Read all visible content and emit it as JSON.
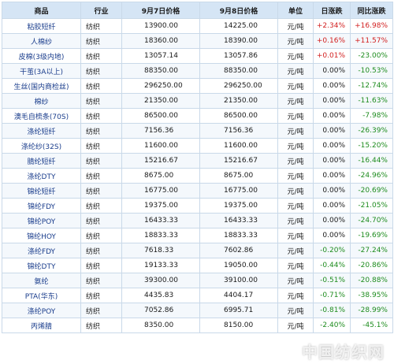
{
  "headers": {
    "name": "商品",
    "industry": "行业",
    "price1": "9月7日价格",
    "price2": "9月8日价格",
    "unit": "单位",
    "day": "日涨跌",
    "yoy": "同比涨跌"
  },
  "rows": [
    {
      "name": "粘胶短纤",
      "industry": "纺织",
      "price1": "13900.00",
      "price2": "14225.00",
      "unit": "元/吨",
      "day": "+2.34%",
      "yoy": "+16.98%",
      "day_dir": "up",
      "yoy_dir": "up"
    },
    {
      "name": "人棉纱",
      "industry": "纺织",
      "price1": "18360.00",
      "price2": "18390.00",
      "unit": "元/吨",
      "day": "+0.16%",
      "yoy": "+11.57%",
      "day_dir": "up",
      "yoy_dir": "up"
    },
    {
      "name": "皮棉(3级内地)",
      "industry": "纺织",
      "price1": "13057.14",
      "price2": "13057.86",
      "unit": "元/吨",
      "day": "+0.01%",
      "yoy": "-23.00%",
      "day_dir": "up",
      "yoy_dir": "down"
    },
    {
      "name": "干茧(3A以上)",
      "industry": "纺织",
      "price1": "88350.00",
      "price2": "88350.00",
      "unit": "元/吨",
      "day": "0.00%",
      "yoy": "-10.53%",
      "day_dir": "flat",
      "yoy_dir": "down"
    },
    {
      "name": "生丝(国内商检丝)",
      "industry": "纺织",
      "price1": "296250.00",
      "price2": "296250.00",
      "unit": "元/吨",
      "day": "0.00%",
      "yoy": "-12.74%",
      "day_dir": "flat",
      "yoy_dir": "down"
    },
    {
      "name": "棉纱",
      "industry": "纺织",
      "price1": "21350.00",
      "price2": "21350.00",
      "unit": "元/吨",
      "day": "0.00%",
      "yoy": "-11.63%",
      "day_dir": "flat",
      "yoy_dir": "down"
    },
    {
      "name": "澳毛自梳条(70S)",
      "industry": "纺织",
      "price1": "86500.00",
      "price2": "86500.00",
      "unit": "元/吨",
      "day": "0.00%",
      "yoy": "-7.98%",
      "day_dir": "flat",
      "yoy_dir": "down"
    },
    {
      "name": "涤纶短纤",
      "industry": "纺织",
      "price1": "7156.36",
      "price2": "7156.36",
      "unit": "元/吨",
      "day": "0.00%",
      "yoy": "-26.39%",
      "day_dir": "flat",
      "yoy_dir": "down"
    },
    {
      "name": "涤纶纱(32S)",
      "industry": "纺织",
      "price1": "11600.00",
      "price2": "11600.00",
      "unit": "元/吨",
      "day": "0.00%",
      "yoy": "-15.20%",
      "day_dir": "flat",
      "yoy_dir": "down"
    },
    {
      "name": "腈纶短纤",
      "industry": "纺织",
      "price1": "15216.67",
      "price2": "15216.67",
      "unit": "元/吨",
      "day": "0.00%",
      "yoy": "-16.44%",
      "day_dir": "flat",
      "yoy_dir": "down"
    },
    {
      "name": "涤纶DTY",
      "industry": "纺织",
      "price1": "8675.00",
      "price2": "8675.00",
      "unit": "元/吨",
      "day": "0.00%",
      "yoy": "-24.96%",
      "day_dir": "flat",
      "yoy_dir": "down"
    },
    {
      "name": "锦纶短纤",
      "industry": "纺织",
      "price1": "16775.00",
      "price2": "16775.00",
      "unit": "元/吨",
      "day": "0.00%",
      "yoy": "-20.69%",
      "day_dir": "flat",
      "yoy_dir": "down"
    },
    {
      "name": "锦纶FDY",
      "industry": "纺织",
      "price1": "19375.00",
      "price2": "19375.00",
      "unit": "元/吨",
      "day": "0.00%",
      "yoy": "-21.05%",
      "day_dir": "flat",
      "yoy_dir": "down"
    },
    {
      "name": "锦纶POY",
      "industry": "纺织",
      "price1": "16433.33",
      "price2": "16433.33",
      "unit": "元/吨",
      "day": "0.00%",
      "yoy": "-24.70%",
      "day_dir": "flat",
      "yoy_dir": "down"
    },
    {
      "name": "锦纶HOY",
      "industry": "纺织",
      "price1": "18833.33",
      "price2": "18833.33",
      "unit": "元/吨",
      "day": "0.00%",
      "yoy": "-19.69%",
      "day_dir": "flat",
      "yoy_dir": "down"
    },
    {
      "name": "涤纶FDY",
      "industry": "纺织",
      "price1": "7618.33",
      "price2": "7602.86",
      "unit": "元/吨",
      "day": "-0.20%",
      "yoy": "-27.24%",
      "day_dir": "down",
      "yoy_dir": "down"
    },
    {
      "name": "锦纶DTY",
      "industry": "纺织",
      "price1": "19133.33",
      "price2": "19050.00",
      "unit": "元/吨",
      "day": "-0.44%",
      "yoy": "-20.86%",
      "day_dir": "down",
      "yoy_dir": "down"
    },
    {
      "name": "氨纶",
      "industry": "纺织",
      "price1": "39300.00",
      "price2": "39100.00",
      "unit": "元/吨",
      "day": "-0.51%",
      "yoy": "-20.88%",
      "day_dir": "down",
      "yoy_dir": "down"
    },
    {
      "name": "PTA(华东)",
      "industry": "纺织",
      "price1": "4435.83",
      "price2": "4404.17",
      "unit": "元/吨",
      "day": "-0.71%",
      "yoy": "-38.95%",
      "day_dir": "down",
      "yoy_dir": "down"
    },
    {
      "name": "涤纶POY",
      "industry": "纺织",
      "price1": "7052.86",
      "price2": "6995.71",
      "unit": "元/吨",
      "day": "-0.81%",
      "yoy": "-28.99%",
      "day_dir": "down",
      "yoy_dir": "down"
    },
    {
      "name": "丙烯腈",
      "industry": "纺织",
      "price1": "8350.00",
      "price2": "8150.00",
      "unit": "元/吨",
      "day": "-2.40%",
      "yoy": "-45.1%",
      "day_dir": "down",
      "yoy_dir": "down"
    }
  ],
  "watermark": "中国纺织网",
  "colors": {
    "up": "#d22020",
    "down": "#1e8c1e",
    "header_bg": "#d5e5f5",
    "border": "#c9d9e9"
  }
}
